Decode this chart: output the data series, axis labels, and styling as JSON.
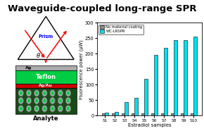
{
  "title": "Waveguide-coupled long-range SPR",
  "title_fontsize": 9.5,
  "bar_categories": [
    "S1",
    "S2",
    "S3",
    "S4",
    "S5",
    "S6",
    "S7",
    "S8",
    "S9",
    "S10"
  ],
  "no_coating_values": [
    8,
    8,
    8,
    8,
    8,
    8,
    8,
    8,
    8,
    8
  ],
  "wc_lrspr_values": [
    10,
    13,
    45,
    58,
    120,
    195,
    218,
    244,
    244,
    254
  ],
  "no_coating_color": "#888888",
  "wc_lrspr_color": "#00e0f0",
  "ylabel": "Fluorescence power (μW)",
  "xlabel": "Estradiol samples",
  "ylim": [
    0,
    300
  ],
  "yticks": [
    0,
    50,
    100,
    150,
    200,
    250,
    300
  ],
  "legend_labels": [
    "No material coating",
    "WC-LRSPR"
  ],
  "background_color": "#ffffff",
  "bar_width": 0.35,
  "prism_label_color": "blue",
  "ag_color": "#aaaaaa",
  "teflon_color": "#00cc44",
  "agau_color": "#cc0000",
  "analyte_bg_color": "#1a4a1a",
  "circle_outer_color": "#888888",
  "circle_inner_color": "#00cc44",
  "analyte_label": "Analyte"
}
